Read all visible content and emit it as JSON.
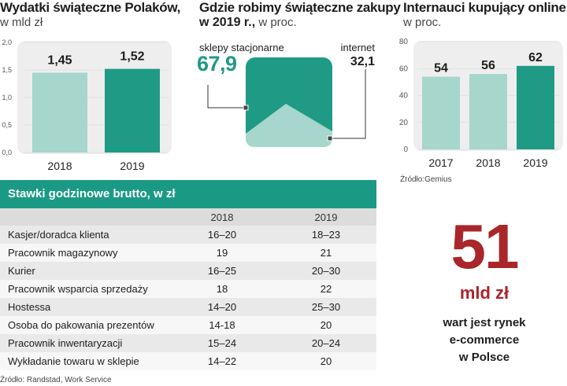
{
  "chart_data": [
    {
      "type": "bar",
      "title": "Wydatki  świąteczne Polaków,",
      "subtitle": "w mld zł",
      "categories": [
        "2018",
        "2019"
      ],
      "values": [
        1.45,
        1.52
      ],
      "value_labels": [
        "1,45",
        "1,52"
      ],
      "yticks": [
        "2,0",
        "1,5",
        "1,0",
        "0,5",
        "0,0"
      ],
      "ylim": [
        0,
        2.0
      ],
      "colors": [
        "#a6d6cc",
        "#1f9a85"
      ]
    },
    {
      "type": "area",
      "title": "Gdzie robimy świąteczne zakupy",
      "title2": "w 2019 r.,",
      "subtitle": " w proc.",
      "series": [
        {
          "name": "sklepy stacjonarne",
          "value": 67.9,
          "label": "67,9"
        },
        {
          "name": "internet",
          "value": 32.1,
          "label": "32,1"
        }
      ]
    },
    {
      "type": "bar",
      "title": "Internauci kupujący online",
      "subtitle": "w proc.",
      "categories": [
        "2017",
        "2018",
        "2019"
      ],
      "values": [
        54,
        56,
        62
      ],
      "value_labels": [
        "54",
        "56",
        "62"
      ],
      "yticks": [
        "80",
        "60",
        "40",
        "20",
        "0"
      ],
      "ylim": [
        0,
        80
      ],
      "source": "Źródło:Gemius",
      "colors": [
        "#a6d6cc",
        "#a6d6cc",
        "#1f9a85"
      ]
    },
    {
      "type": "table",
      "title": "Stawki godzinowe brutto, w zł",
      "columns": [
        "",
        "2018",
        "2019"
      ],
      "rows": [
        {
          "name": "Kasjer/doradca klienta",
          "v2018": "16–20",
          "v2019": "18–23"
        },
        {
          "name": "Pracownik magazynowy",
          "v2018": "19",
          "v2019": "21"
        },
        {
          "name": "Kurier",
          "v2018": "16–25",
          "v2019": "20–30"
        },
        {
          "name": "Pracownik wsparcia sprzedaży",
          "v2018": "18",
          "v2019": "22"
        },
        {
          "name": "Hostessa",
          "v2018": "14–20",
          "v2019": "25–30"
        },
        {
          "name": "Osoba do pakowania prezentów",
          "v2018": "14-18",
          "v2019": "20"
        },
        {
          "name": "Pracownik inwentaryzacji",
          "v2018": "15–24",
          "v2019": "20–24"
        },
        {
          "name": "Wykładanie towaru w sklepie",
          "v2018": "14–22",
          "v2019": "20"
        }
      ],
      "source": "Źródło: Randstad, Work Service"
    }
  ],
  "highlight": {
    "number": "51",
    "unit": "mld zł",
    "line1": "wart jest rynek",
    "line2": "e-commerce",
    "line3": "w Polsce"
  },
  "colors": {
    "light_teal": "#a6d6cc",
    "dark_teal": "#1f9a85",
    "header_teal": "#1a9a84",
    "red": "#a9262a",
    "panel": "#eeeeee"
  }
}
